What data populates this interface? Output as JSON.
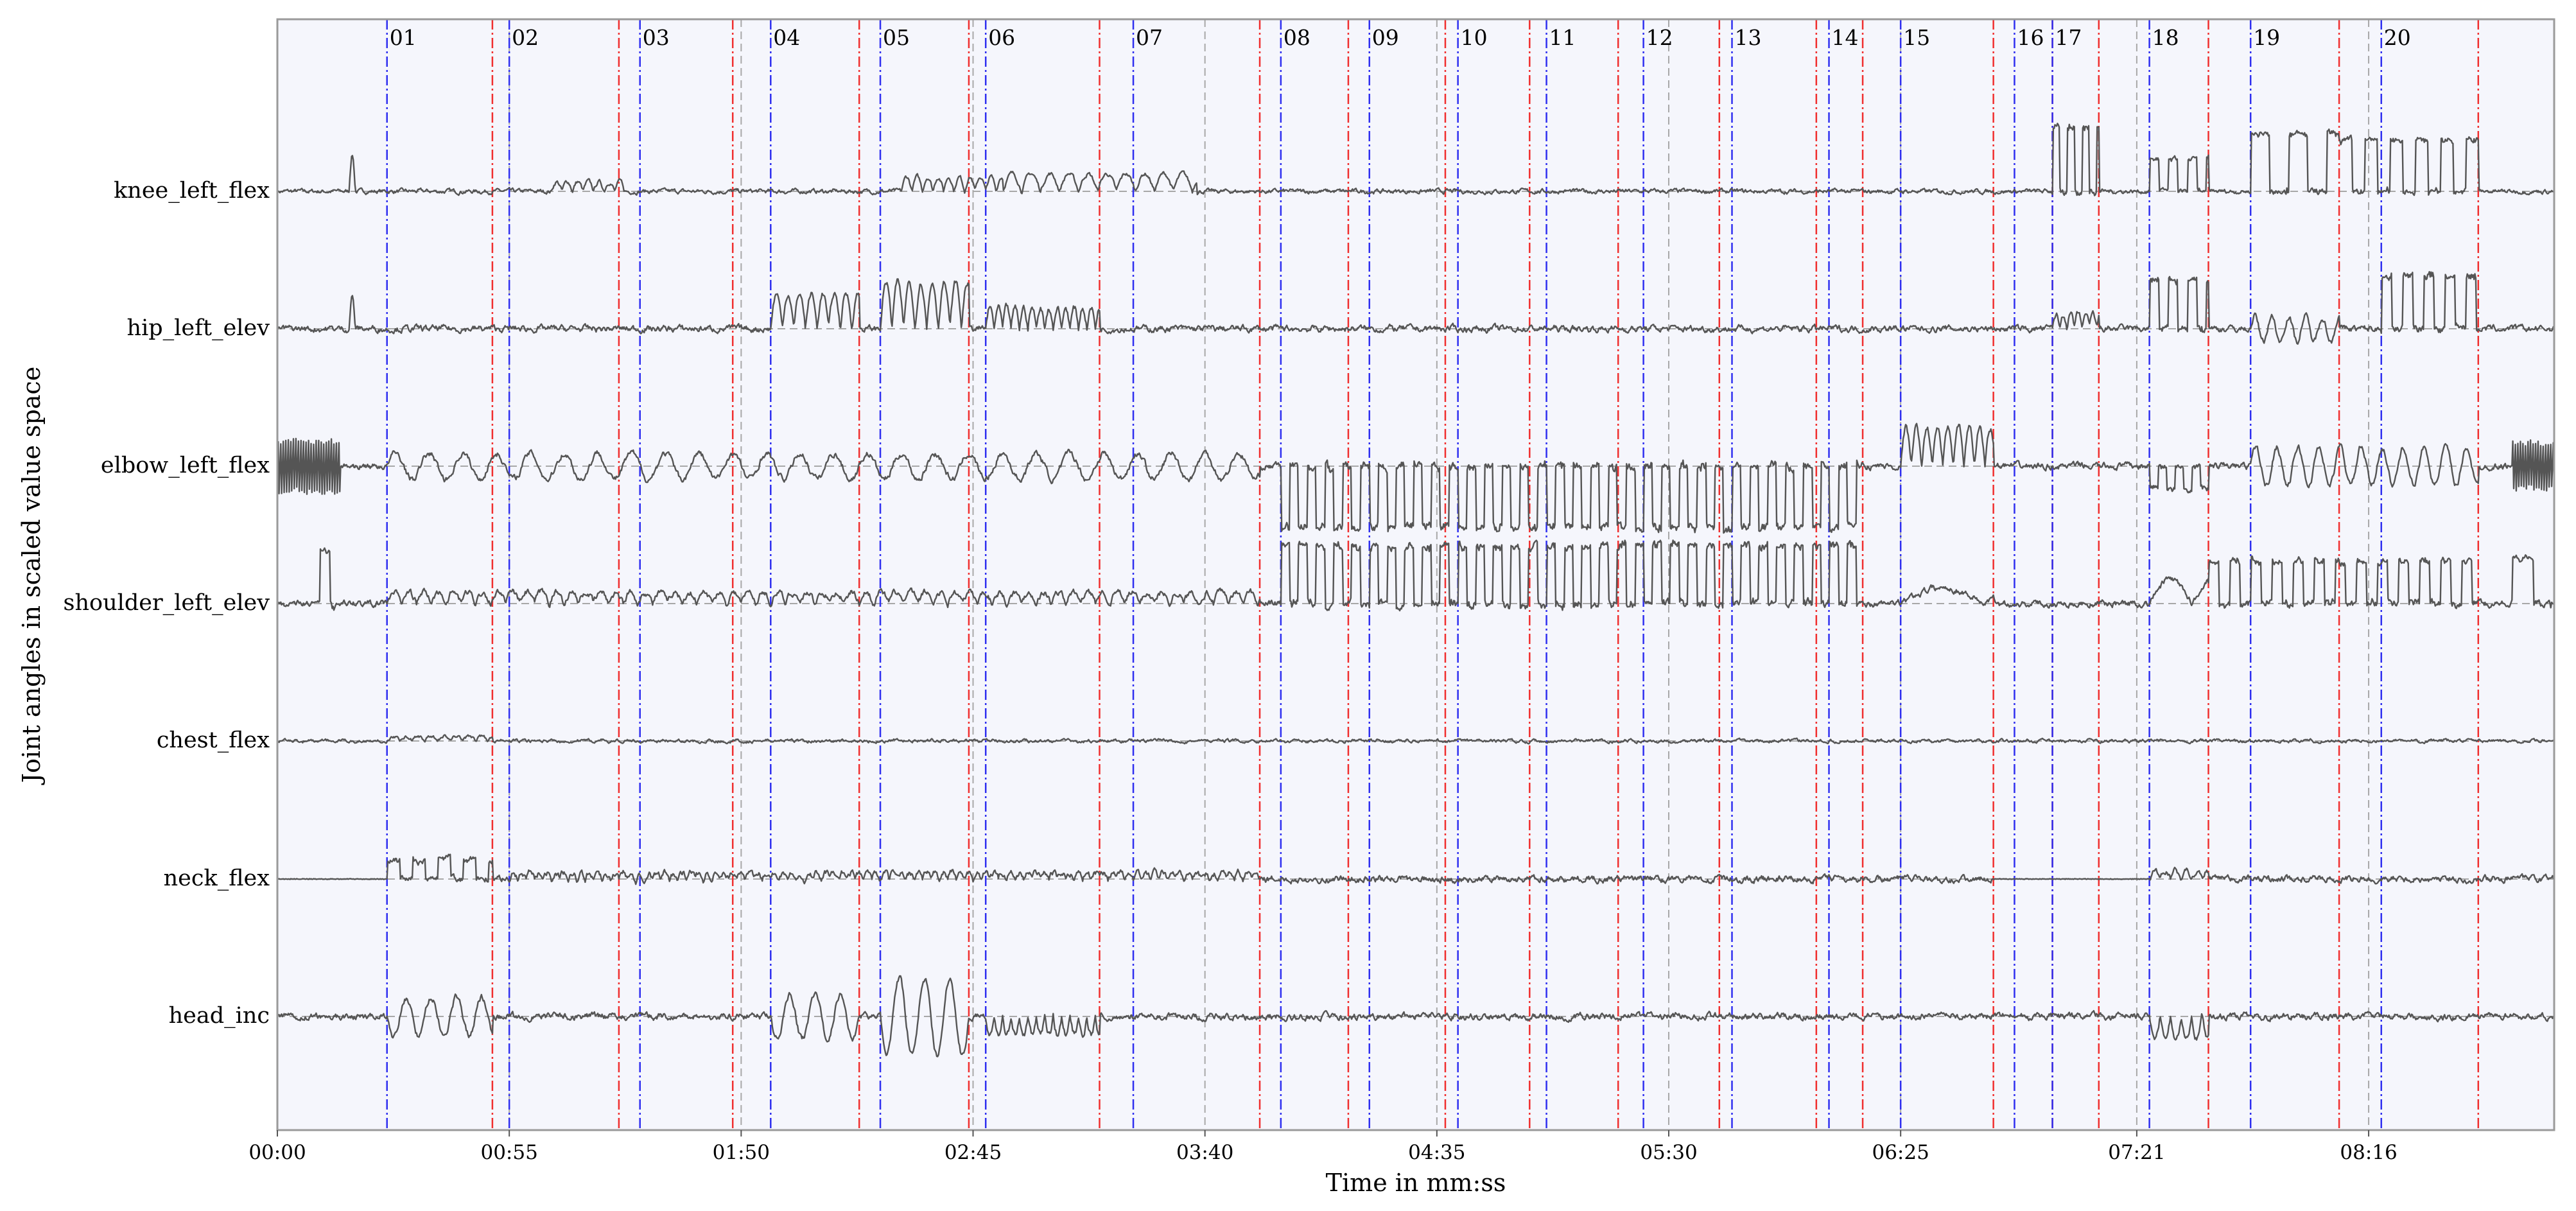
{
  "chart_data": {
    "type": "line",
    "xlabel": "Time in mm:ss",
    "ylabel": "Joint angles in scaled value space",
    "xlim": [
      0,
      540
    ],
    "x_ticks": [
      {
        "t": 0,
        "label": "00:00"
      },
      {
        "t": 55,
        "label": "00:55"
      },
      {
        "t": 110,
        "label": "01:50"
      },
      {
        "t": 165,
        "label": "02:45"
      },
      {
        "t": 220,
        "label": "03:40"
      },
      {
        "t": 275,
        "label": "04:35"
      },
      {
        "t": 330,
        "label": "05:30"
      },
      {
        "t": 385,
        "label": "06:25"
      },
      {
        "t": 441,
        "label": "07:21"
      },
      {
        "t": 496,
        "label": "08:16"
      }
    ],
    "grid": "vertical dashed at ticks, horizontal dashed baseline per series",
    "series": [
      {
        "name": "knee_left_flex"
      },
      {
        "name": "hip_left_elev"
      },
      {
        "name": "elbow_left_flex"
      },
      {
        "name": "shoulder_left_elev"
      },
      {
        "name": "chest_flex"
      },
      {
        "name": "neck_flex"
      },
      {
        "name": "head_inc"
      }
    ],
    "segments": [
      {
        "label": "01",
        "start": 26,
        "end": 51
      },
      {
        "label": "02",
        "start": 55,
        "end": 81
      },
      {
        "label": "03",
        "start": 86,
        "end": 108
      },
      {
        "label": "04",
        "start": 117,
        "end": 138
      },
      {
        "label": "05",
        "start": 143,
        "end": 164
      },
      {
        "label": "06",
        "start": 168,
        "end": 195
      },
      {
        "label": "07",
        "start": 203,
        "end": 233
      },
      {
        "label": "08",
        "start": 238,
        "end": 254
      },
      {
        "label": "09",
        "start": 259,
        "end": 277
      },
      {
        "label": "10",
        "start": 280,
        "end": 297
      },
      {
        "label": "11",
        "start": 301,
        "end": 318
      },
      {
        "label": "12",
        "start": 324,
        "end": 342
      },
      {
        "label": "13",
        "start": 345,
        "end": 365
      },
      {
        "label": "14",
        "start": 368,
        "end": 376
      },
      {
        "label": "15",
        "start": 385,
        "end": 407
      },
      {
        "label": "16",
        "start": 412,
        "end": 421
      },
      {
        "label": "17",
        "start": 421,
        "end": 432
      },
      {
        "label": "18",
        "start": 444,
        "end": 458
      },
      {
        "label": "19",
        "start": 468,
        "end": 489
      },
      {
        "label": "20",
        "start": 499,
        "end": 522
      }
    ],
    "colors": {
      "segment_start": "#2f2ff0",
      "segment_end": "#f02f2f",
      "signal": "#555555",
      "plot_background": "#f5f6fc",
      "grid": "#a8a8a8"
    }
  }
}
